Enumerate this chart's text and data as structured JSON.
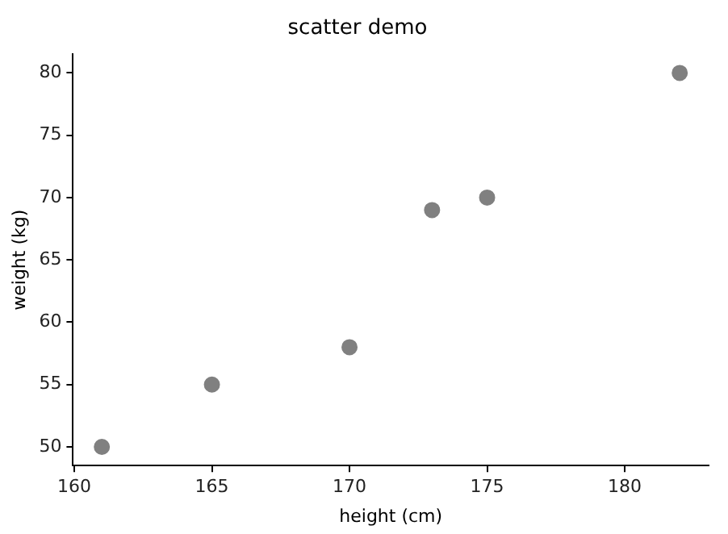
{
  "chart_data": {
    "type": "scatter",
    "title": "scatter demo",
    "xlabel": "height (cm)",
    "ylabel": "weight (kg)",
    "x": [
      161,
      165,
      170,
      173,
      175,
      182
    ],
    "series": [
      {
        "color": "#808080",
        "values": [
          50,
          55,
          58,
          69,
          70,
          80
        ]
      }
    ],
    "xlim": [
      159.95,
      183.05
    ],
    "xticks": [
      160,
      165,
      170,
      175,
      180
    ],
    "ylim": [
      48.5,
      81.5
    ],
    "yticks": [
      50,
      55,
      60,
      65,
      70,
      75,
      80
    ],
    "marker": "circle",
    "grid": false,
    "legend": false
  }
}
